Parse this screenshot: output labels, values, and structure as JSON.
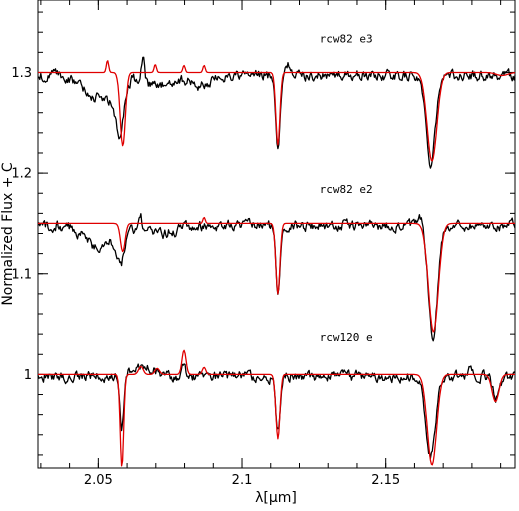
{
  "chart_data": {
    "type": "line",
    "title": "",
    "xlabel": "λ[μm]",
    "ylabel": "Normalized Flux + C",
    "xlim": [
      2.029,
      2.195
    ],
    "ylim": [
      0.907,
      1.372
    ],
    "x_ticks": [
      2.05,
      2.1,
      2.15
    ],
    "x_tick_labels": [
      "2.05",
      "2.1",
      "2.15"
    ],
    "y_ticks": [
      1.0,
      1.1,
      1.2,
      1.3
    ],
    "y_tick_labels": [
      "1",
      "1.1",
      "1.2",
      "1.3"
    ],
    "grid": false,
    "legend": "none",
    "colors": {
      "observed": "#000000",
      "model": "#e00000"
    },
    "annotations": [
      {
        "text": "rcw82 e3",
        "x": 2.127,
        "y": 1.33
      },
      {
        "text": "rcw82 e2",
        "x": 2.127,
        "y": 1.18
      },
      {
        "text": "rcw120 e",
        "x": 2.127,
        "y": 1.033
      }
    ],
    "spectra": [
      {
        "label": "rcw82 e3",
        "offset": 1.3,
        "observed_continuum": 1.297,
        "noise": 0.006,
        "observed_features": [
          {
            "center": 2.0495,
            "depth": 0.02,
            "width": 0.005
          },
          {
            "center": 2.0575,
            "depth": 0.045,
            "width": 0.0012
          },
          {
            "center": 2.0558,
            "depth": 0.015,
            "width": 0.003
          },
          {
            "center": 2.0655,
            "depth": -0.02,
            "width": 0.0006
          },
          {
            "center": 2.0705,
            "depth": 0.012,
            "width": 0.004
          },
          {
            "center": 2.0855,
            "depth": 0.01,
            "width": 0.004
          },
          {
            "center": 2.1125,
            "depth": 0.072,
            "width": 0.0007
          },
          {
            "center": 2.1165,
            "depth": -0.01,
            "width": 0.001
          },
          {
            "center": 2.1656,
            "depth": 0.085,
            "width": 0.0016
          }
        ],
        "model_continuum": 1.3,
        "model_features": [
          {
            "center": 2.0585,
            "depth": 0.073,
            "width": 0.0009
          },
          {
            "center": 2.0532,
            "depth": -0.012,
            "width": 0.0004
          },
          {
            "center": 2.0698,
            "depth": -0.008,
            "width": 0.0004
          },
          {
            "center": 2.0798,
            "depth": -0.007,
            "width": 0.0004
          },
          {
            "center": 2.0868,
            "depth": -0.007,
            "width": 0.0004
          },
          {
            "center": 2.1125,
            "depth": 0.072,
            "width": 0.0007
          },
          {
            "center": 2.1661,
            "depth": 0.088,
            "width": 0.0017
          },
          {
            "center": 2.1905,
            "depth": 0.003,
            "width": 0.002
          }
        ]
      },
      {
        "label": "rcw82 e2",
        "offset": 1.15,
        "observed_continuum": 1.148,
        "noise": 0.006,
        "observed_features": [
          {
            "center": 2.0505,
            "depth": 0.022,
            "width": 0.005
          },
          {
            "center": 2.0578,
            "depth": 0.03,
            "width": 0.0012
          },
          {
            "center": 2.0645,
            "depth": -0.02,
            "width": 0.0006
          },
          {
            "center": 2.0705,
            "depth": 0.008,
            "width": 0.006
          },
          {
            "center": 2.1125,
            "depth": 0.07,
            "width": 0.0007
          },
          {
            "center": 2.1664,
            "depth": 0.11,
            "width": 0.0016
          },
          {
            "center": 2.1625,
            "depth": -0.012,
            "width": 0.0006
          }
        ],
        "model_continuum": 1.15,
        "model_features": [
          {
            "center": 2.0585,
            "depth": 0.028,
            "width": 0.0008
          },
          {
            "center": 2.0868,
            "depth": -0.006,
            "width": 0.0004
          },
          {
            "center": 2.1125,
            "depth": 0.07,
            "width": 0.0007
          },
          {
            "center": 2.1666,
            "depth": 0.108,
            "width": 0.0017
          }
        ]
      },
      {
        "label": "rcw120 e",
        "offset": 1.0,
        "observed_continuum": 0.998,
        "noise": 0.006,
        "observed_features": [
          {
            "center": 2.0582,
            "depth": 0.05,
            "width": 0.0007
          },
          {
            "center": 2.065,
            "depth": -0.01,
            "width": 0.004
          },
          {
            "center": 2.0795,
            "depth": -0.015,
            "width": 0.0008
          },
          {
            "center": 2.1125,
            "depth": 0.056,
            "width": 0.0007
          },
          {
            "center": 2.1656,
            "depth": 0.079,
            "width": 0.0016
          },
          {
            "center": 2.1795,
            "depth": -0.01,
            "width": 0.0006
          },
          {
            "center": 2.1885,
            "depth": 0.022,
            "width": 0.0012
          }
        ],
        "model_continuum": 1.0,
        "model_features": [
          {
            "center": 2.0582,
            "depth": 0.092,
            "width": 0.0006
          },
          {
            "center": 2.0648,
            "depth": -0.008,
            "width": 0.0008
          },
          {
            "center": 2.0705,
            "depth": -0.006,
            "width": 0.0008
          },
          {
            "center": 2.0798,
            "depth": -0.024,
            "width": 0.0007
          },
          {
            "center": 2.0868,
            "depth": -0.007,
            "width": 0.0006
          },
          {
            "center": 2.1125,
            "depth": 0.064,
            "width": 0.0007
          },
          {
            "center": 2.1661,
            "depth": 0.09,
            "width": 0.0016
          },
          {
            "center": 2.1882,
            "depth": 0.027,
            "width": 0.0012
          }
        ]
      }
    ]
  }
}
